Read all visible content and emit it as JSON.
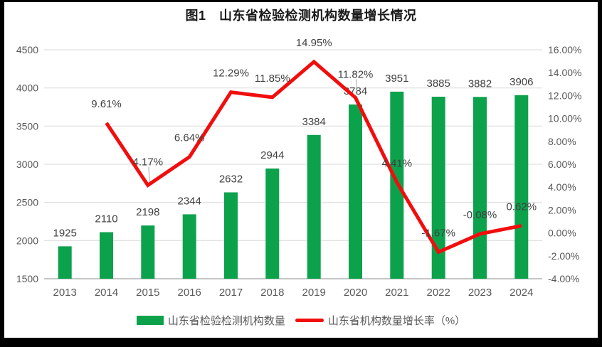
{
  "chart_data": {
    "type": "combo",
    "title": "图1　山东省检验检测机构数量增长情况",
    "categories": [
      "2013",
      "2014",
      "2015",
      "2016",
      "2017",
      "2018",
      "2019",
      "2020",
      "2021",
      "2022",
      "2023",
      "2024"
    ],
    "series": [
      {
        "name": "山东省检验检测机构数量",
        "type": "bar",
        "axis": "left",
        "color": "#0ca24c",
        "values": [
          1925,
          2110,
          2198,
          2344,
          2632,
          2944,
          3384,
          3784,
          3951,
          3885,
          3882,
          3906
        ]
      },
      {
        "name": "山东省机构数量增长率（%）",
        "type": "line",
        "axis": "right",
        "color": "#f20d0d",
        "values": [
          null,
          9.61,
          4.17,
          6.64,
          12.29,
          11.85,
          14.95,
          11.82,
          4.41,
          -1.67,
          -0.08,
          0.62
        ],
        "data_labels": [
          null,
          "9.61%",
          "4.17%",
          "6.64%",
          "12.29%",
          "11.85%",
          "14.95%",
          "11.82%",
          "4.41%",
          "-1.67%",
          "-0.08%",
          "0.62%"
        ]
      }
    ],
    "left_axis": {
      "min": 1500,
      "max": 4500,
      "step": 500,
      "tick_labels": [
        "1500",
        "2000",
        "2500",
        "3000",
        "3500",
        "4000",
        "4500"
      ]
    },
    "right_axis": {
      "min": -4,
      "max": 16,
      "step": 2,
      "tick_labels": [
        "-4.00%",
        "-2.00%",
        "0.00%",
        "2.00%",
        "4.00%",
        "6.00%",
        "8.00%",
        "10.00%",
        "12.00%",
        "14.00%",
        "16.00%"
      ]
    },
    "gridlines": "horizontal",
    "legend_position": "bottom",
    "annotation_layout": {
      "leader_label_indices": [
        2,
        7
      ]
    }
  },
  "colors": {
    "bar": "#0ca24c",
    "line": "#f20d0d",
    "grid": "#d9d9d9",
    "axis_line": "#c6c6c6",
    "tick_text": "#595959",
    "data_label_text": "#404040",
    "title_text": "#1a1a1a",
    "leader": "#a6a6a6",
    "frame": "#000000"
  }
}
